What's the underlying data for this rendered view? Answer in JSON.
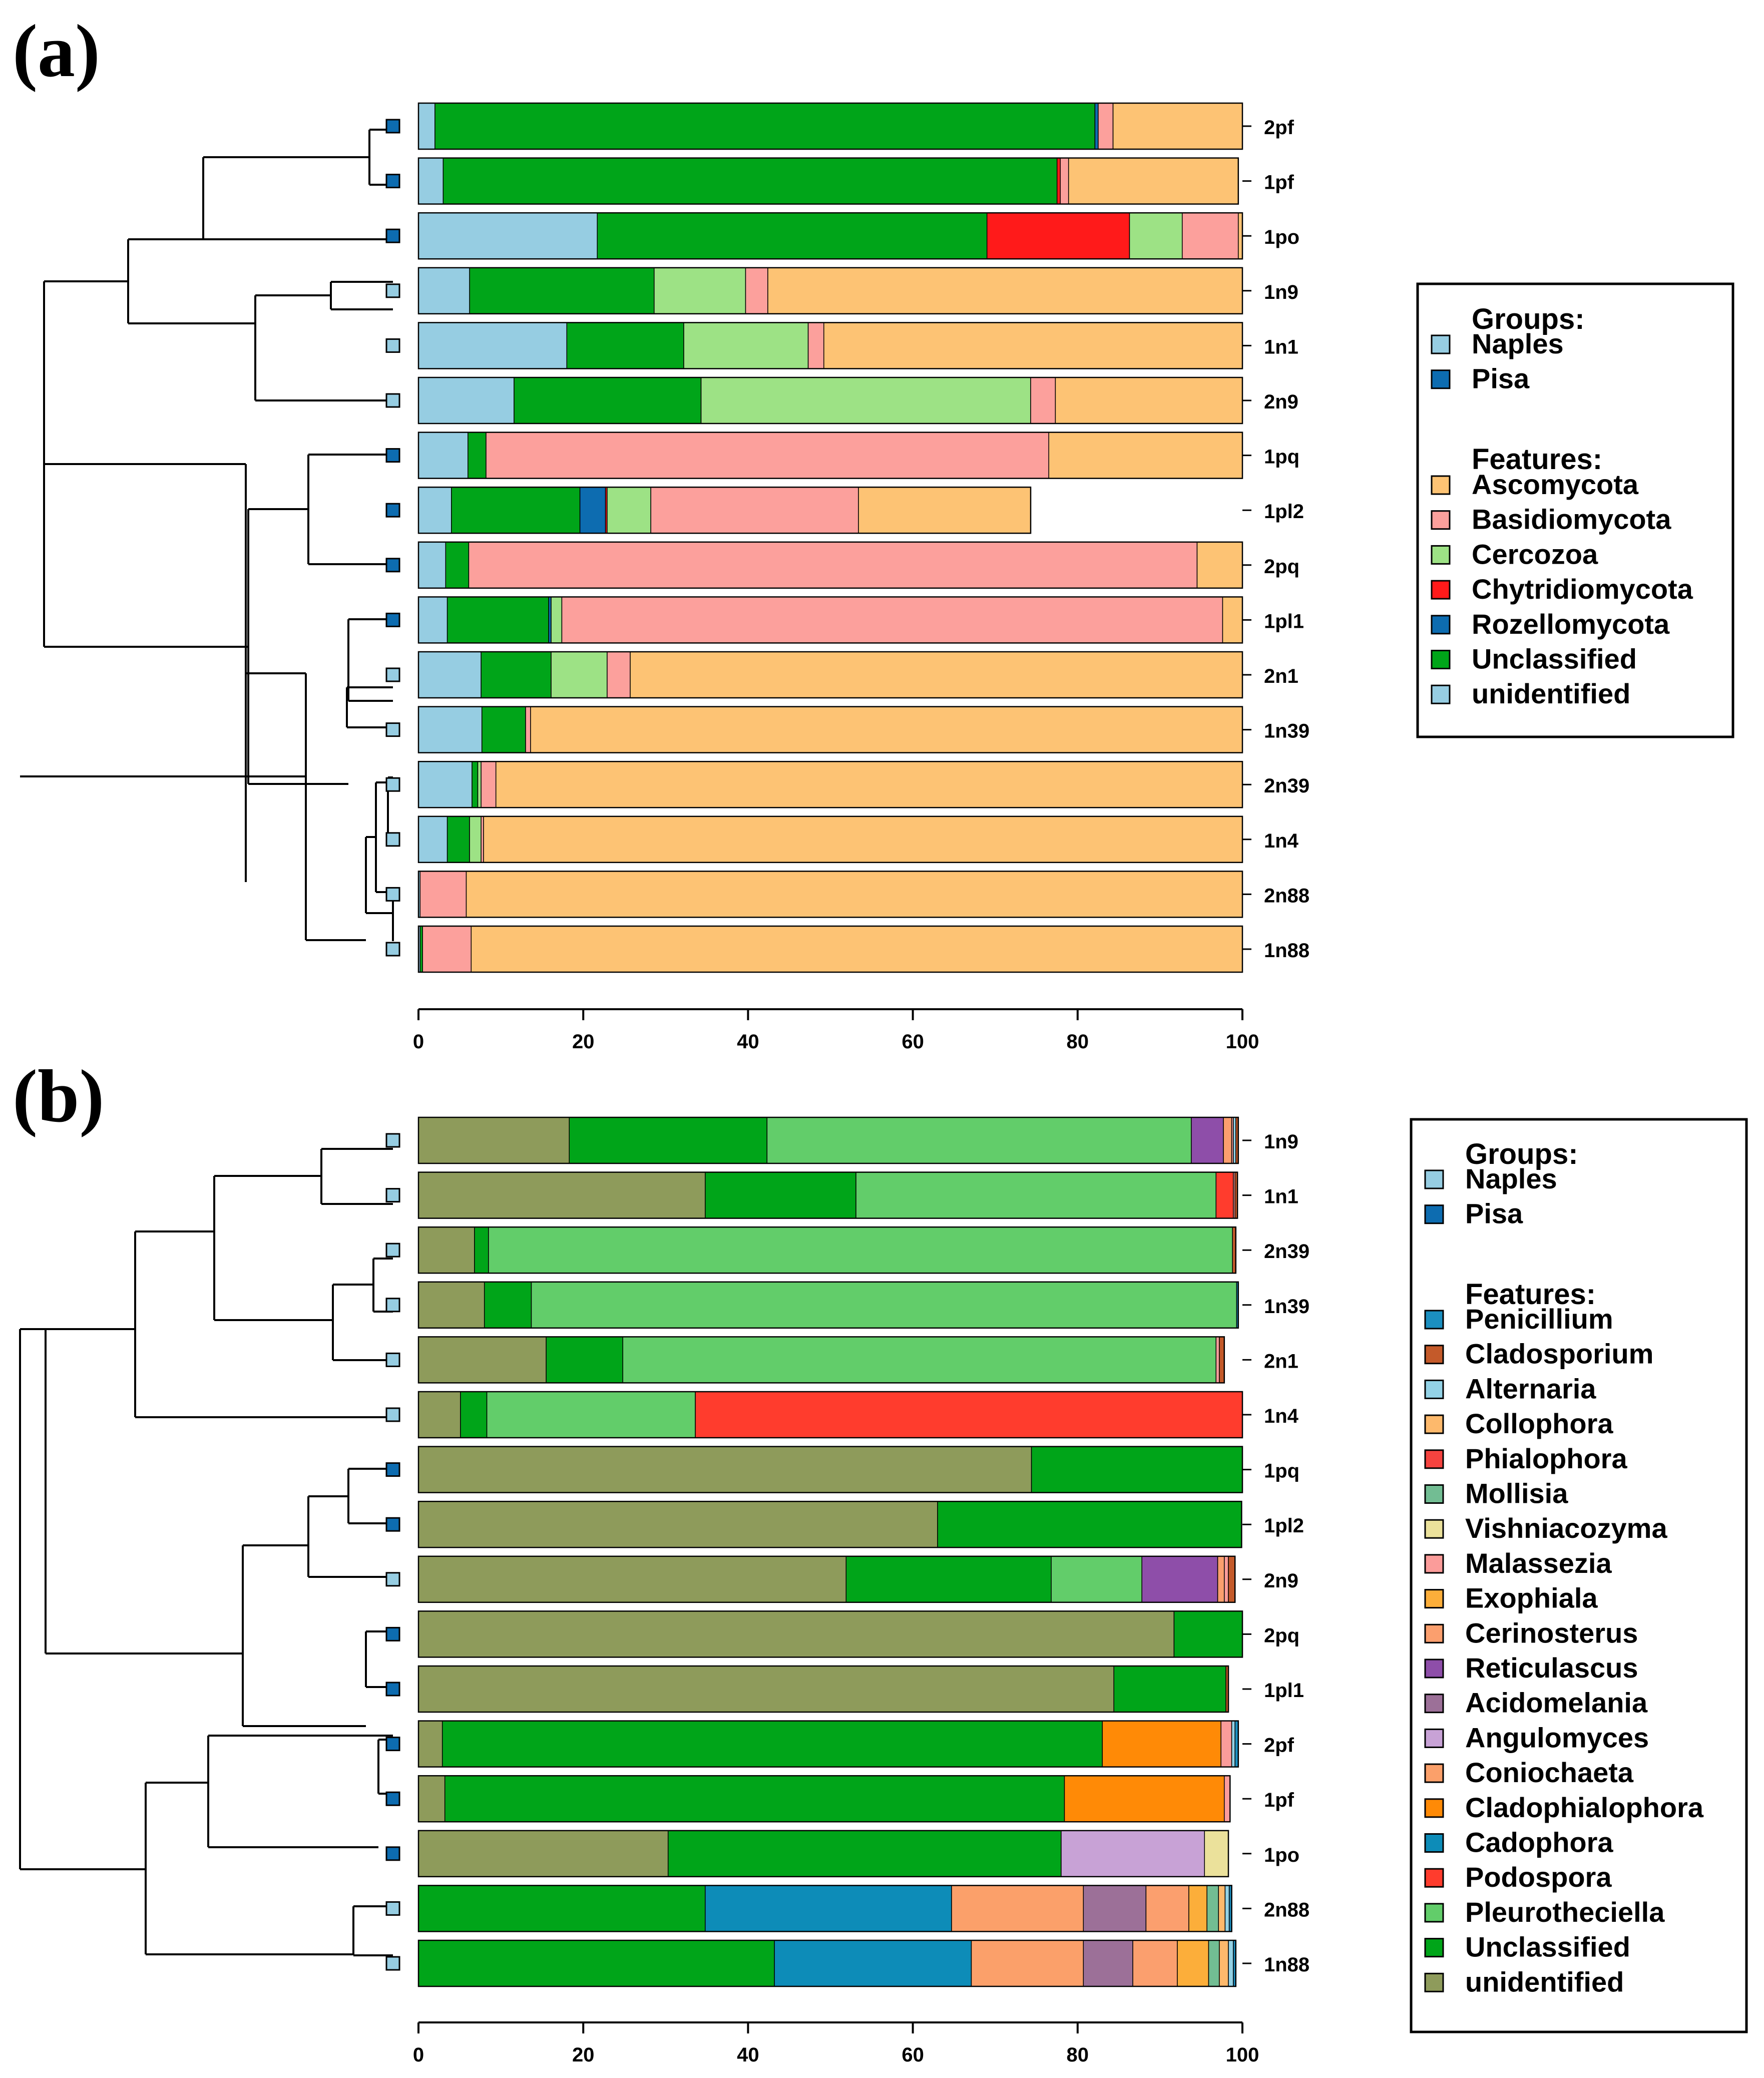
{
  "chart_data": [
    {
      "panel_label": "(a)",
      "type": "bar",
      "orientation": "horizontal",
      "stacked": true,
      "xlim": [
        0,
        100
      ],
      "x_ticks": [
        "0",
        "20",
        "40",
        "60",
        "80",
        "100"
      ],
      "categories": [
        "2pf",
        "1pf",
        "1po",
        "1n9",
        "1n1",
        "2n9",
        "1pq",
        "1pl2",
        "2pq",
        "1pl1",
        "2n1",
        "1n39",
        "2n39",
        "1n4",
        "2n88",
        "1n88"
      ],
      "groups": [
        "Pisa",
        "Pisa",
        "Pisa",
        "Naples",
        "Naples",
        "Naples",
        "Pisa",
        "Pisa",
        "Pisa",
        "Pisa",
        "Naples",
        "Naples",
        "Naples",
        "Naples",
        "Naples",
        "Naples"
      ],
      "series": [
        {
          "name": "unidentified",
          "color": "#96cde2",
          "values": [
            2,
            3,
            21.7,
            6.2,
            18,
            11.6,
            6,
            4,
            3.3,
            3.5,
            7.6,
            7.7,
            6.5,
            3.5,
            0.2,
            0.2
          ]
        },
        {
          "name": "Unclassified",
          "color": "#00a519",
          "values": [
            80.1,
            74.5,
            47.3,
            22.4,
            14.2,
            22.7,
            2.2,
            15.6,
            2.8,
            12.3,
            8.5,
            5.3,
            0.7,
            2.7,
            0,
            0.3
          ]
        },
        {
          "name": "Rozellomycota",
          "color": "#0d6cb0",
          "values": [
            0.4,
            0,
            0,
            0,
            0,
            0,
            0,
            3.1,
            0,
            0.3,
            0,
            0,
            0,
            0,
            0,
            0
          ]
        },
        {
          "name": "Chytridiomycota",
          "color": "#ff1a1a",
          "values": [
            0,
            0.4,
            17.3,
            0,
            0,
            0,
            0,
            0.2,
            0,
            0,
            0,
            0,
            0,
            0,
            0,
            0
          ]
        },
        {
          "name": "Cercozoa",
          "color": "#9de285",
          "values": [
            0,
            0,
            6.4,
            11.1,
            15.1,
            40,
            0,
            5.3,
            0,
            1.3,
            6.8,
            0,
            0.4,
            1.4,
            0,
            0
          ]
        },
        {
          "name": "Basidiomycota",
          "color": "#fca09c",
          "values": [
            1.8,
            1,
            6.8,
            2.7,
            1.9,
            3,
            68.3,
            25.2,
            88.4,
            80.2,
            2.8,
            0.6,
            1.8,
            0.3,
            5.6,
            5.9
          ]
        },
        {
          "name": "Ascomycota",
          "color": "#fdc374",
          "values": [
            15.7,
            20.6,
            0.5,
            57.6,
            50.8,
            22.7,
            23.5,
            20.9,
            5.5,
            2.4,
            74.3,
            86.4,
            90.6,
            92.1,
            94.2,
            93.6
          ]
        }
      ],
      "legend": {
        "groups_heading": "Groups:",
        "groups": [
          {
            "name": "Naples",
            "color": "#96cde2"
          },
          {
            "name": "Pisa",
            "color": "#0d6cb0"
          }
        ],
        "features_heading": "Features:",
        "features": [
          {
            "name": "Ascomycota",
            "color": "#fdc374"
          },
          {
            "name": "Basidiomycota",
            "color": "#fca09c"
          },
          {
            "name": "Cercozoa",
            "color": "#9de285"
          },
          {
            "name": "Chytridiomycota",
            "color": "#ff1a1a"
          },
          {
            "name": "Rozellomycota",
            "color": "#0d6cb0"
          },
          {
            "name": "Unclassified",
            "color": "#00a519"
          },
          {
            "name": "unidentified",
            "color": "#96cde2"
          }
        ]
      }
    },
    {
      "panel_label": "(b)",
      "type": "bar",
      "orientation": "horizontal",
      "stacked": true,
      "xlim": [
        0,
        100
      ],
      "x_ticks": [
        "0",
        "20",
        "40",
        "60",
        "80",
        "100"
      ],
      "categories": [
        "1n9",
        "1n1",
        "2n39",
        "1n39",
        "2n1",
        "1n4",
        "1pq",
        "1pl2",
        "2n9",
        "2pq",
        "1pl1",
        "2pf",
        "1pf",
        "1po",
        "2n88",
        "1n88"
      ],
      "groups": [
        "Naples",
        "Naples",
        "Naples",
        "Naples",
        "Naples",
        "Naples",
        "Pisa",
        "Pisa",
        "Naples",
        "Pisa",
        "Pisa",
        "Pisa",
        "Pisa",
        "Pisa",
        "Naples",
        "Naples"
      ],
      "series": [
        {
          "name": "unidentified",
          "color": "#8e9b5b",
          "values": [
            18.3,
            34.8,
            6.8,
            8,
            15.5,
            5.1,
            74.4,
            63,
            51.9,
            91.7,
            84.4,
            2.9,
            3.2,
            30.3,
            0,
            0
          ]
        },
        {
          "name": "Unclassified",
          "color": "#00a519",
          "values": [
            24,
            18.3,
            1.7,
            5.7,
            9.3,
            3.2,
            25.6,
            36.9,
            24.9,
            8.3,
            13.6,
            80.1,
            75.2,
            47.7,
            34.8,
            43.2
          ]
        },
        {
          "name": "Pleurotheciella",
          "color": "#62cd6a",
          "values": [
            51.5,
            43.7,
            90.3,
            85.6,
            72,
            25.3,
            0,
            0,
            11,
            0,
            0,
            0,
            0,
            0,
            0,
            0
          ]
        },
        {
          "name": "Podospora",
          "color": "#ff3c2d",
          "values": [
            0,
            2.1,
            0,
            0,
            0,
            66.4,
            0,
            0,
            0,
            0,
            0,
            0,
            0,
            0,
            0,
            0
          ]
        },
        {
          "name": "Cadophora",
          "color": "#0d8cb8",
          "values": [
            0,
            0,
            0,
            0,
            0,
            0,
            0,
            0,
            0,
            0,
            0,
            0,
            0,
            0,
            29.9,
            23.9
          ]
        },
        {
          "name": "Cladophialophora",
          "color": "#ff8a06",
          "values": [
            0,
            0,
            0,
            0,
            0,
            0,
            0,
            0,
            0,
            0,
            0,
            14.4,
            19.4,
            0,
            0,
            0
          ]
        },
        {
          "name": "Coniochaeta",
          "color": "#fba06a",
          "values": [
            0,
            0,
            0,
            0,
            0,
            0,
            0,
            0,
            0,
            0,
            0,
            0,
            0,
            0,
            16,
            13.6
          ]
        },
        {
          "name": "Angulomyces",
          "color": "#c8a2d6",
          "values": [
            0,
            0,
            0,
            0,
            0,
            0,
            0,
            0,
            0,
            0,
            0,
            0,
            0,
            17.4,
            0,
            0
          ]
        },
        {
          "name": "Acidomelania",
          "color": "#9c7098",
          "values": [
            0,
            0,
            0,
            0,
            0,
            0,
            0,
            0,
            0,
            0,
            0,
            0,
            0,
            0,
            7.6,
            6
          ]
        },
        {
          "name": "Reticulascus",
          "color": "#8e4ea9",
          "values": [
            3.9,
            0,
            0,
            0,
            0,
            0,
            0,
            0,
            9.2,
            0,
            0,
            0,
            0,
            0,
            0,
            0
          ]
        },
        {
          "name": "Cerinosterus",
          "color": "#fb9f6e",
          "values": [
            1,
            0,
            0,
            0,
            0,
            0,
            0,
            0,
            0.8,
            0,
            0,
            0,
            0,
            0,
            5.2,
            5.4
          ]
        },
        {
          "name": "Exophiala",
          "color": "#fcae3a",
          "values": [
            0,
            0,
            0,
            0,
            0,
            0,
            0,
            0,
            0,
            0,
            0,
            0,
            0,
            0,
            2.2,
            3.8
          ]
        },
        {
          "name": "Malassezia",
          "color": "#fb9c9a",
          "values": [
            0.2,
            0.2,
            0,
            0,
            0.4,
            0,
            0,
            0,
            0.5,
            0,
            0,
            1.3,
            0.7,
            0,
            0,
            0
          ]
        },
        {
          "name": "Vishniacozyma",
          "color": "#ebe19b",
          "values": [
            0,
            0,
            0,
            0,
            0,
            0,
            0,
            0,
            0,
            0,
            0,
            0,
            0,
            2.9,
            0,
            0
          ]
        },
        {
          "name": "Mollisia",
          "color": "#72bd93",
          "values": [
            0,
            0,
            0,
            0,
            0,
            0,
            0,
            0,
            0,
            0,
            0,
            0,
            0,
            0,
            1.4,
            1.3
          ]
        },
        {
          "name": "Phialophora",
          "color": "#f5433f",
          "values": [
            0,
            0,
            0,
            0,
            0,
            0,
            0,
            0,
            0,
            0,
            0,
            0,
            0,
            0,
            0,
            0
          ]
        },
        {
          "name": "Collophora",
          "color": "#fdb96c",
          "values": [
            0,
            0,
            0,
            0,
            0,
            0,
            0,
            0,
            0,
            0,
            0,
            0,
            0,
            0,
            0.8,
            1.1
          ]
        },
        {
          "name": "Alternaria",
          "color": "#93d2e6",
          "values": [
            0.3,
            0,
            0,
            0,
            0,
            0,
            0,
            0,
            0,
            0,
            0,
            0.4,
            0,
            0,
            0.5,
            0.6
          ]
        },
        {
          "name": "Cladosporium",
          "color": "#c45a2a",
          "values": [
            0.3,
            0.3,
            0.4,
            0,
            0.6,
            0,
            0,
            0,
            0.8,
            0,
            0.3,
            0,
            0,
            0,
            0,
            0
          ]
        },
        {
          "name": "Penicillium",
          "color": "#1b8fc0",
          "values": [
            0,
            0,
            0,
            0.2,
            0,
            0,
            0,
            0,
            0,
            0,
            0,
            0.4,
            0,
            0,
            0.3,
            0.3
          ]
        }
      ],
      "legend": {
        "groups_heading": "Groups:",
        "groups": [
          {
            "name": "Naples",
            "color": "#96cde2"
          },
          {
            "name": "Pisa",
            "color": "#0d6cb0"
          }
        ],
        "features_heading": "Features:",
        "features": [
          {
            "name": "Penicillium",
            "color": "#1b8fc0"
          },
          {
            "name": "Cladosporium",
            "color": "#c45a2a"
          },
          {
            "name": "Alternaria",
            "color": "#93d2e6"
          },
          {
            "name": "Collophora",
            "color": "#fdb96c"
          },
          {
            "name": "Phialophora",
            "color": "#f5433f"
          },
          {
            "name": "Mollisia",
            "color": "#72bd93"
          },
          {
            "name": "Vishniacozyma",
            "color": "#ebe19b"
          },
          {
            "name": "Malassezia",
            "color": "#fb9c9a"
          },
          {
            "name": "Exophiala",
            "color": "#fcae3a"
          },
          {
            "name": "Cerinosterus",
            "color": "#fb9f6e"
          },
          {
            "name": "Reticulascus",
            "color": "#8e4ea9"
          },
          {
            "name": "Acidomelania",
            "color": "#9c7098"
          },
          {
            "name": "Angulomyces",
            "color": "#c8a2d6"
          },
          {
            "name": "Coniochaeta",
            "color": "#fba06a"
          },
          {
            "name": "Cladophialophora",
            "color": "#ff8a06"
          },
          {
            "name": "Cadophora",
            "color": "#0d8cb8"
          },
          {
            "name": "Podospora",
            "color": "#ff3c2d"
          },
          {
            "name": "Pleurotheciella",
            "color": "#62cd6a"
          },
          {
            "name": "Unclassified",
            "color": "#00a519"
          },
          {
            "name": "unidentified",
            "color": "#8e9b5b"
          }
        ]
      }
    }
  ]
}
